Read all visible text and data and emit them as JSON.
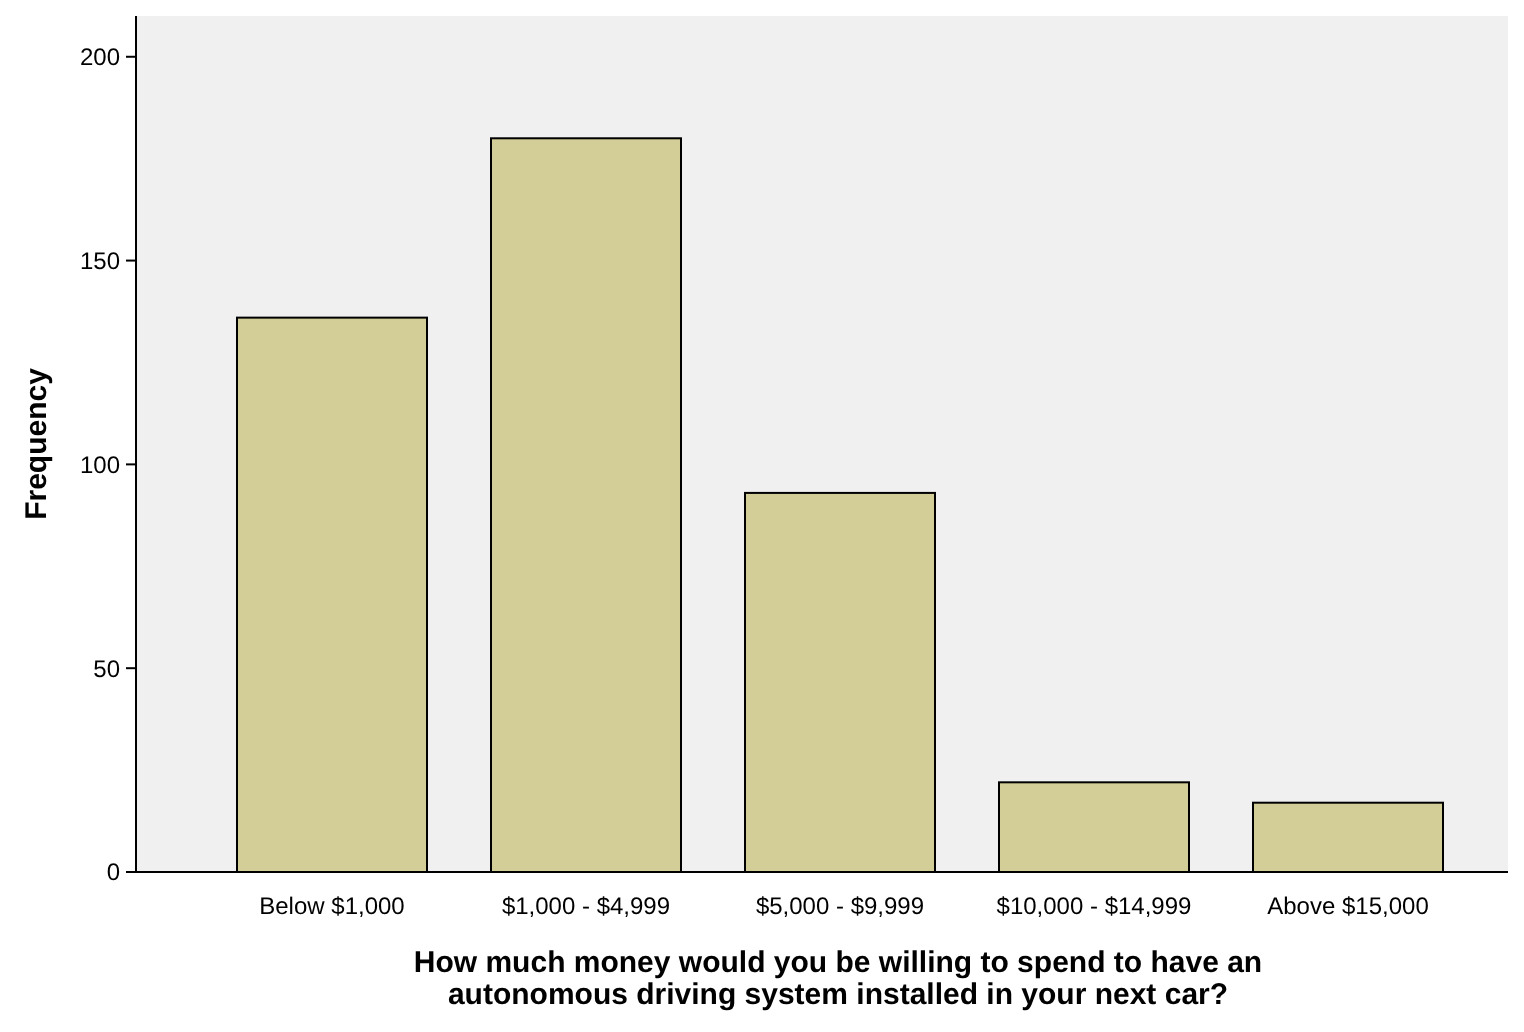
{
  "chart_data": {
    "type": "bar",
    "xlabel": "How much money would you be willing to spend to have an autonomous driving system installed in your next car?",
    "ylabel": "Frequency",
    "categories": [
      "Below $1,000",
      "$1,000 - $4,999",
      "$5,000 - $9,999",
      "$10,000 - $14,999",
      "Above $15,000"
    ],
    "values": [
      136,
      180,
      93,
      22,
      17
    ],
    "color": "#d3ce97",
    "ylim": [
      0,
      210
    ],
    "yticks": [
      0,
      50,
      100,
      150,
      200
    ],
    "grid": false
  }
}
